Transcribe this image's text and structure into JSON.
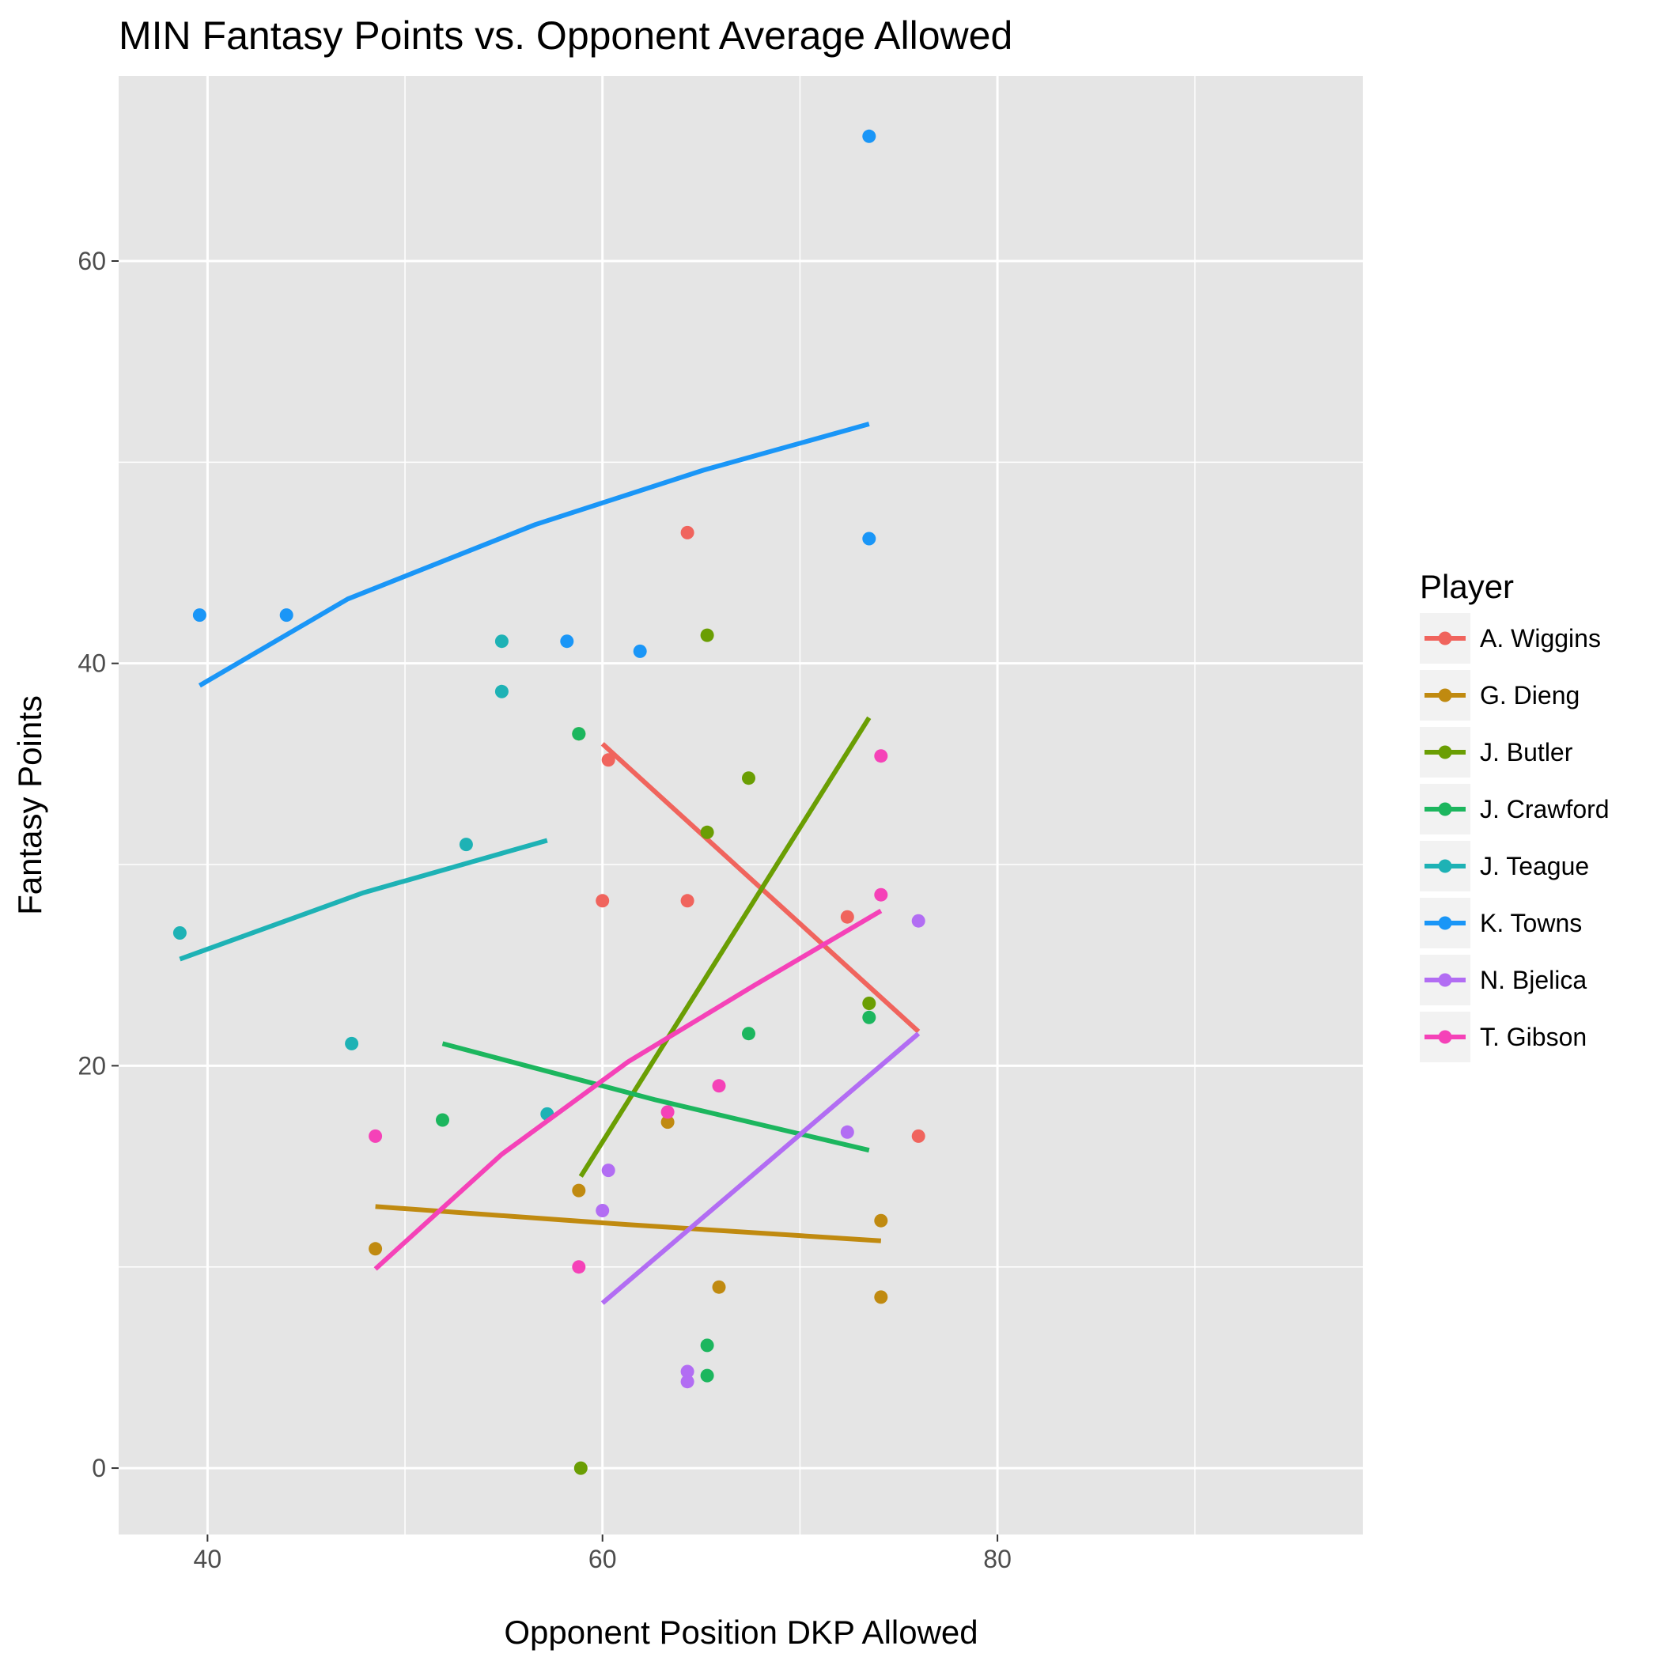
{
  "chart_data": {
    "type": "scatter",
    "title": "MIN Fantasy Points vs. Opponent Average Allowed",
    "xlabel": "Opponent Position DKP Allowed",
    "ylabel": "Fantasy Points",
    "xlim": [
      35.5,
      98.5
    ],
    "ylim": [
      -3.3,
      69.2
    ],
    "x_ticks": [
      40,
      60,
      80
    ],
    "y_ticks": [
      0,
      20,
      40,
      60
    ],
    "grid": true,
    "legend": {
      "title": "Player",
      "position": "right"
    },
    "colors": {
      "panel_background": "#e5e5e5",
      "grid": "#ffffff",
      "tick_label": "#4d4d4d"
    },
    "series": [
      {
        "name": "A. Wiggins",
        "color": "#f0645d",
        "points": [
          [
            64.3,
            46.5
          ],
          [
            60.3,
            35.2
          ],
          [
            60.0,
            28.2
          ],
          [
            64.3,
            28.2
          ],
          [
            72.4,
            27.4
          ],
          [
            76.0,
            16.5
          ]
        ],
        "fit": [
          [
            60.0,
            36.0
          ],
          [
            76.0,
            21.7
          ]
        ]
      },
      {
        "name": "G. Dieng",
        "color": "#c08a10",
        "points": [
          [
            48.5,
            10.9
          ],
          [
            58.8,
            13.8
          ],
          [
            63.3,
            17.2
          ],
          [
            65.9,
            9.0
          ],
          [
            74.1,
            12.3
          ],
          [
            74.1,
            8.5
          ]
        ],
        "fit": [
          [
            48.5,
            13.0
          ],
          [
            61.3,
            12.1
          ],
          [
            74.1,
            11.3
          ]
        ]
      },
      {
        "name": "J. Butler",
        "color": "#6a9e03",
        "points": [
          [
            58.9,
            0.0
          ],
          [
            58.8,
            36.5
          ],
          [
            65.3,
            41.4
          ],
          [
            67.4,
            34.3
          ],
          [
            65.3,
            31.6
          ],
          [
            73.5,
            23.1
          ]
        ],
        "fit": [
          [
            58.9,
            14.5
          ],
          [
            73.5,
            37.3
          ]
        ]
      },
      {
        "name": "J. Crawford",
        "color": "#1cb65e",
        "points": [
          [
            51.9,
            17.3
          ],
          [
            58.8,
            36.5
          ],
          [
            67.4,
            21.6
          ],
          [
            73.5,
            22.4
          ],
          [
            65.3,
            6.1
          ],
          [
            65.3,
            4.6
          ]
        ],
        "fit": [
          [
            51.9,
            21.1
          ],
          [
            62.7,
            18.3
          ],
          [
            73.5,
            15.8
          ]
        ]
      },
      {
        "name": "J. Teague",
        "color": "#1eb2b5",
        "points": [
          [
            38.6,
            26.6
          ],
          [
            47.3,
            21.1
          ],
          [
            53.1,
            31.0
          ],
          [
            54.9,
            41.1
          ],
          [
            54.9,
            38.6
          ],
          [
            57.2,
            17.6
          ]
        ],
        "fit": [
          [
            38.6,
            25.3
          ],
          [
            47.9,
            28.6
          ],
          [
            57.2,
            31.2
          ]
        ]
      },
      {
        "name": "K. Towns",
        "color": "#1a96f7",
        "points": [
          [
            39.6,
            42.4
          ],
          [
            44.0,
            42.4
          ],
          [
            58.2,
            41.1
          ],
          [
            61.9,
            40.6
          ],
          [
            73.5,
            66.2
          ],
          [
            73.5,
            46.2
          ]
        ],
        "fit": [
          [
            39.6,
            38.9
          ],
          [
            47.1,
            43.2
          ],
          [
            56.6,
            46.9
          ],
          [
            65.1,
            49.6
          ],
          [
            73.5,
            51.9
          ]
        ]
      },
      {
        "name": "N. Bjelica",
        "color": "#b26df3",
        "points": [
          [
            60.3,
            14.8
          ],
          [
            60.0,
            12.8
          ],
          [
            64.3,
            4.8
          ],
          [
            64.3,
            4.3
          ],
          [
            72.4,
            16.7
          ],
          [
            76.0,
            27.2
          ]
        ],
        "fit": [
          [
            60.0,
            8.2
          ],
          [
            68.0,
            14.9
          ],
          [
            76.0,
            21.6
          ]
        ]
      },
      {
        "name": "T. Gibson",
        "color": "#f542b8",
        "points": [
          [
            48.5,
            16.5
          ],
          [
            58.8,
            10.0
          ],
          [
            63.3,
            17.7
          ],
          [
            65.9,
            19.0
          ],
          [
            74.1,
            28.5
          ],
          [
            74.1,
            35.4
          ]
        ],
        "fit": [
          [
            48.5,
            9.9
          ],
          [
            54.9,
            15.6
          ],
          [
            61.3,
            20.2
          ],
          [
            67.7,
            24.0
          ],
          [
            74.1,
            27.7
          ]
        ]
      }
    ]
  }
}
